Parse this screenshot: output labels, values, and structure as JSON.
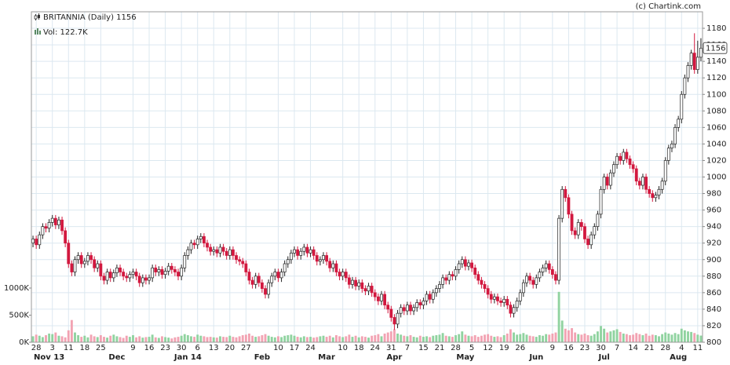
{
  "chart_data": {
    "type": "candlestick",
    "title": "BRITANNIA (Daily) 1156",
    "volume_label": "Vol: 122.7K",
    "credit": "(c) Chartink.com",
    "categories": [
      null,
      "28",
      null,
      null,
      null,
      null,
      "3",
      null,
      null,
      null,
      null,
      "11",
      null,
      null,
      null,
      null,
      "18",
      null,
      null,
      null,
      null,
      "25",
      null,
      null,
      null,
      null,
      null,
      null,
      null,
      null,
      null,
      "9",
      null,
      null,
      null,
      null,
      "16",
      null,
      null,
      null,
      null,
      "23",
      null,
      null,
      null,
      null,
      "30",
      null,
      null,
      null,
      null,
      "6",
      null,
      null,
      null,
      null,
      "13",
      null,
      null,
      null,
      null,
      "20",
      null,
      null,
      null,
      null,
      "27",
      null,
      null,
      null,
      null,
      null,
      null,
      null,
      null,
      null,
      "10",
      null,
      null,
      null,
      null,
      "17",
      null,
      null,
      null,
      null,
      "24",
      null,
      null,
      null,
      null,
      null,
      null,
      null,
      null,
      null,
      "10",
      null,
      null,
      null,
      null,
      "18",
      null,
      null,
      null,
      null,
      "24",
      null,
      null,
      null,
      null,
      "31",
      null,
      null,
      null,
      null,
      "7",
      null,
      null,
      null,
      null,
      "15",
      null,
      null,
      null,
      null,
      "21",
      null,
      null,
      null,
      null,
      "28",
      null,
      null,
      null,
      null,
      "5",
      null,
      null,
      null,
      null,
      "12",
      null,
      null,
      null,
      null,
      "19",
      null,
      null,
      null,
      null,
      "26",
      null,
      null,
      null,
      null,
      null,
      null,
      null,
      null,
      null,
      "9",
      null,
      null,
      null,
      null,
      "16",
      null,
      null,
      null,
      null,
      "23",
      null,
      null,
      null,
      null,
      "30",
      null,
      null,
      null,
      null,
      "7",
      null,
      null,
      null,
      null,
      "14",
      null,
      null,
      null,
      null,
      "21",
      null,
      null,
      null,
      null,
      "28",
      null,
      null,
      null,
      null,
      "4",
      null,
      null,
      null,
      null,
      "11",
      null
    ],
    "months": [
      null,
      null,
      null,
      null,
      null,
      "Nov 13",
      null,
      null,
      null,
      null,
      null,
      null,
      null,
      null,
      null,
      null,
      null,
      null,
      null,
      null,
      null,
      null,
      null,
      null,
      null,
      null,
      "Dec",
      null,
      null,
      null,
      null,
      null,
      null,
      null,
      null,
      null,
      null,
      null,
      null,
      null,
      null,
      null,
      null,
      null,
      null,
      null,
      null,
      null,
      "Jan 14",
      null,
      null,
      null,
      null,
      null,
      null,
      null,
      null,
      null,
      null,
      null,
      null,
      null,
      null,
      null,
      null,
      null,
      null,
      null,
      null,
      null,
      null,
      "Feb",
      null,
      null,
      null,
      null,
      null,
      null,
      null,
      null,
      null,
      null,
      null,
      null,
      null,
      null,
      null,
      null,
      null,
      null,
      null,
      "Mar",
      null,
      null,
      null,
      null,
      null,
      null,
      null,
      null,
      null,
      null,
      null,
      null,
      null,
      null,
      null,
      null,
      null,
      null,
      null,
      null,
      "Apr",
      null,
      null,
      null,
      null,
      null,
      null,
      null,
      null,
      null,
      null,
      null,
      null,
      null,
      null,
      null,
      null,
      null,
      null,
      null,
      null,
      null,
      "May",
      null,
      null,
      null,
      null,
      null,
      null,
      null,
      null,
      null,
      null,
      null,
      null,
      null,
      null,
      null,
      null,
      null,
      null,
      null,
      null,
      null,
      "Jun",
      null,
      null,
      null,
      null,
      null,
      null,
      null,
      null,
      null,
      null,
      null,
      null,
      null,
      null,
      null,
      null,
      null,
      null,
      null,
      null,
      "Jul",
      null,
      null,
      null,
      null,
      null,
      null,
      null,
      null,
      null,
      null,
      null,
      null,
      null,
      null,
      null,
      null,
      null,
      null,
      null,
      null,
      null,
      null,
      "Aug",
      null,
      null,
      null,
      null,
      null,
      null,
      null
    ],
    "open": [
      920,
      925,
      918,
      930,
      940,
      938,
      945,
      950,
      942,
      948,
      935,
      920,
      895,
      885,
      900,
      905,
      895,
      898,
      905,
      900,
      890,
      895,
      880,
      875,
      885,
      878,
      884,
      890,
      885,
      880,
      878,
      882,
      885,
      880,
      872,
      878,
      875,
      878,
      890,
      885,
      888,
      882,
      886,
      892,
      888,
      885,
      880,
      890,
      905,
      912,
      920,
      918,
      925,
      928,
      920,
      915,
      910,
      912,
      908,
      915,
      910,
      905,
      912,
      905,
      900,
      898,
      895,
      885,
      875,
      870,
      880,
      872,
      865,
      858,
      872,
      880,
      885,
      878,
      885,
      895,
      900,
      908,
      912,
      905,
      910,
      915,
      908,
      912,
      905,
      898,
      900,
      905,
      898,
      890,
      895,
      885,
      880,
      885,
      878,
      870,
      875,
      868,
      872,
      865,
      862,
      868,
      860,
      855,
      850,
      858,
      845,
      840,
      830,
      822,
      835,
      842,
      838,
      845,
      838,
      842,
      848,
      845,
      850,
      858,
      852,
      860,
      865,
      870,
      878,
      875,
      882,
      880,
      888,
      895,
      900,
      892,
      896,
      890,
      882,
      875,
      870,
      865,
      858,
      852,
      855,
      850,
      848,
      852,
      845,
      835,
      842,
      850,
      860,
      872,
      880,
      875,
      870,
      878,
      885,
      890,
      895,
      888,
      882,
      875,
      950,
      985,
      975,
      955,
      935,
      930,
      945,
      940,
      925,
      918,
      930,
      940,
      955,
      985,
      1000,
      990,
      1005,
      1015,
      1025,
      1020,
      1030,
      1022,
      1015,
      1010,
      995,
      990,
      1000,
      985,
      980,
      975,
      978,
      985,
      995,
      1020,
      1035,
      1040,
      1060,
      1070,
      1100,
      1120,
      1135,
      1150,
      1130,
      1145
    ],
    "high": [
      929,
      929,
      934,
      944,
      944,
      949,
      954,
      954,
      952,
      952,
      939,
      924,
      899,
      904,
      909,
      909,
      902,
      909,
      909,
      904,
      899,
      899,
      884,
      889,
      889,
      888,
      894,
      894,
      889,
      884,
      886,
      889,
      889,
      884,
      882,
      882,
      882,
      894,
      894,
      892,
      892,
      890,
      896,
      896,
      892,
      889,
      894,
      909,
      916,
      924,
      924,
      929,
      932,
      932,
      924,
      919,
      916,
      916,
      919,
      919,
      914,
      916,
      916,
      909,
      904,
      902,
      899,
      889,
      879,
      884,
      884,
      876,
      869,
      876,
      884,
      889,
      889,
      889,
      899,
      904,
      912,
      916,
      916,
      914,
      919,
      919,
      916,
      916,
      909,
      904,
      909,
      909,
      902,
      899,
      899,
      889,
      889,
      889,
      882,
      879,
      879,
      876,
      876,
      869,
      872,
      872,
      864,
      859,
      862,
      862,
      849,
      844,
      834,
      839,
      846,
      846,
      849,
      849,
      846,
      852,
      852,
      854,
      862,
      862,
      864,
      869,
      874,
      882,
      882,
      886,
      886,
      892,
      899,
      904,
      904,
      900,
      900,
      894,
      886,
      879,
      874,
      869,
      862,
      859,
      859,
      854,
      856,
      856,
      849,
      846,
      854,
      864,
      876,
      884,
      884,
      879,
      882,
      889,
      894,
      899,
      899,
      892,
      886,
      954,
      989,
      989,
      979,
      959,
      939,
      949,
      949,
      944,
      929,
      934,
      944,
      959,
      989,
      1004,
      1004,
      1009,
      1019,
      1029,
      1029,
      1034,
      1034,
      1026,
      1019,
      1014,
      999,
      1004,
      1004,
      989,
      984,
      982,
      989,
      999,
      1024,
      1039,
      1044,
      1064,
      1074,
      1104,
      1124,
      1139,
      1154,
      1174,
      1165,
      1168
    ],
    "low": [
      915,
      913,
      913,
      925,
      933,
      933,
      940,
      937,
      937,
      930,
      915,
      890,
      880,
      880,
      895,
      890,
      890,
      893,
      895,
      885,
      885,
      875,
      870,
      870,
      873,
      873,
      879,
      880,
      875,
      873,
      873,
      877,
      875,
      867,
      867,
      870,
      870,
      873,
      880,
      880,
      877,
      877,
      881,
      883,
      880,
      875,
      875,
      885,
      900,
      907,
      913,
      913,
      920,
      915,
      910,
      905,
      905,
      903,
      903,
      905,
      900,
      900,
      900,
      895,
      893,
      890,
      880,
      870,
      865,
      865,
      867,
      860,
      853,
      853,
      867,
      875,
      873,
      873,
      880,
      890,
      895,
      903,
      900,
      900,
      905,
      903,
      903,
      900,
      893,
      893,
      895,
      893,
      885,
      885,
      880,
      875,
      875,
      873,
      865,
      865,
      863,
      863,
      860,
      857,
      857,
      855,
      850,
      845,
      845,
      840,
      835,
      825,
      815,
      817,
      830,
      833,
      833,
      833,
      833,
      837,
      840,
      840,
      845,
      847,
      847,
      855,
      860,
      865,
      870,
      870,
      875,
      875,
      883,
      890,
      887,
      887,
      885,
      877,
      870,
      865,
      860,
      853,
      847,
      847,
      845,
      843,
      843,
      840,
      830,
      830,
      837,
      845,
      855,
      867,
      870,
      865,
      865,
      873,
      880,
      885,
      883,
      877,
      870,
      870,
      945,
      970,
      950,
      930,
      925,
      925,
      935,
      920,
      913,
      913,
      925,
      935,
      950,
      980,
      985,
      985,
      1000,
      1010,
      1015,
      1015,
      1017,
      1010,
      1005,
      990,
      985,
      985,
      980,
      975,
      970,
      970,
      973,
      980,
      990,
      1015,
      1030,
      1035,
      1055,
      1065,
      1095,
      1115,
      1130,
      1125,
      1125,
      1140
    ],
    "close": [
      925,
      918,
      930,
      940,
      938,
      945,
      950,
      942,
      948,
      935,
      920,
      895,
      885,
      900,
      905,
      895,
      898,
      905,
      900,
      890,
      895,
      880,
      875,
      885,
      878,
      884,
      890,
      885,
      880,
      878,
      882,
      885,
      880,
      872,
      878,
      875,
      878,
      890,
      885,
      888,
      882,
      886,
      892,
      888,
      885,
      880,
      890,
      905,
      912,
      920,
      918,
      925,
      928,
      920,
      915,
      910,
      912,
      908,
      915,
      910,
      905,
      912,
      905,
      900,
      898,
      895,
      885,
      875,
      870,
      880,
      872,
      865,
      858,
      872,
      880,
      885,
      878,
      885,
      895,
      900,
      908,
      912,
      905,
      910,
      915,
      908,
      912,
      905,
      898,
      900,
      905,
      898,
      890,
      895,
      885,
      880,
      885,
      878,
      870,
      875,
      868,
      872,
      865,
      862,
      868,
      860,
      855,
      850,
      858,
      845,
      840,
      830,
      822,
      835,
      842,
      838,
      845,
      838,
      842,
      848,
      845,
      850,
      858,
      852,
      860,
      865,
      870,
      878,
      875,
      882,
      880,
      888,
      895,
      900,
      892,
      896,
      890,
      882,
      875,
      870,
      865,
      858,
      852,
      855,
      850,
      848,
      852,
      845,
      835,
      842,
      850,
      860,
      872,
      880,
      875,
      870,
      878,
      885,
      890,
      895,
      888,
      882,
      875,
      950,
      985,
      975,
      955,
      935,
      930,
      945,
      940,
      925,
      918,
      930,
      940,
      955,
      985,
      1000,
      990,
      1005,
      1015,
      1025,
      1020,
      1030,
      1022,
      1015,
      1010,
      995,
      990,
      1000,
      985,
      980,
      975,
      978,
      985,
      995,
      1020,
      1035,
      1040,
      1060,
      1070,
      1100,
      1120,
      1135,
      1150,
      1130,
      1145,
      1156
    ],
    "volume": [
      110000,
      140000,
      120000,
      95000,
      130000,
      160000,
      150000,
      180000,
      120000,
      110000,
      90000,
      220000,
      410000,
      180000,
      130000,
      100000,
      120000,
      90000,
      140000,
      110000,
      95000,
      130000,
      100000,
      85000,
      120000,
      140000,
      110000,
      95000,
      80000,
      120000,
      100000,
      130000,
      90000,
      110000,
      85000,
      95000,
      100000,
      140000,
      90000,
      80000,
      110000,
      95000,
      85000,
      70000,
      90000,
      100000,
      120000,
      150000,
      130000,
      110000,
      100000,
      140000,
      120000,
      110000,
      95000,
      100000,
      90000,
      85000,
      110000,
      100000,
      95000,
      120000,
      100000,
      90000,
      110000,
      130000,
      140000,
      160000,
      120000,
      100000,
      110000,
      130000,
      150000,
      120000,
      100000,
      90000,
      110000,
      95000,
      120000,
      130000,
      140000,
      120000,
      100000,
      90000,
      110000,
      95000,
      100000,
      85000,
      95000,
      110000,
      120000,
      100000,
      120000,
      90000,
      130000,
      110000,
      95000,
      110000,
      140000,
      100000,
      120000,
      90000,
      110000,
      100000,
      85000,
      120000,
      130000,
      150000,
      110000,
      160000,
      180000,
      200000,
      240000,
      160000,
      140000,
      120000,
      110000,
      130000,
      100000,
      90000,
      120000,
      100000,
      110000,
      95000,
      120000,
      130000,
      140000,
      170000,
      120000,
      110000,
      100000,
      130000,
      150000,
      200000,
      140000,
      120000,
      110000,
      130000,
      100000,
      120000,
      140000,
      150000,
      120000,
      100000,
      110000,
      95000,
      130000,
      160000,
      240000,
      180000,
      140000,
      150000,
      170000,
      140000,
      120000,
      110000,
      100000,
      130000,
      120000,
      150000,
      140000,
      160000,
      180000,
      930000,
      400000,
      250000,
      220000,
      260000,
      180000,
      150000,
      140000,
      160000,
      130000,
      120000,
      150000,
      200000,
      300000,
      250000,
      180000,
      200000,
      220000,
      240000,
      190000,
      160000,
      150000,
      130000,
      140000,
      170000,
      150000,
      130000,
      160000,
      120000,
      140000,
      130000,
      110000,
      150000,
      180000,
      160000,
      140000,
      170000,
      150000,
      250000,
      220000,
      200000,
      190000,
      170000,
      140000,
      122700
    ],
    "up_color": "#ffffff",
    "down_color": "#d2183f",
    "up_volume_color": "#90d3a0",
    "down_volume_color": "#f2a3b3",
    "ylim": [
      800,
      1200
    ],
    "yticks": [
      800,
      820,
      840,
      860,
      880,
      900,
      920,
      940,
      960,
      980,
      1000,
      1020,
      1040,
      1060,
      1080,
      1100,
      1120,
      1140,
      1160,
      1180
    ],
    "volume_lim": [
      0,
      6100000
    ],
    "volume_ticks": [
      {
        "value": 0,
        "label": "0K"
      },
      {
        "value": 500000,
        "label": "500K"
      },
      {
        "value": 1000000,
        "label": "1000K"
      }
    ],
    "grid": true
  }
}
